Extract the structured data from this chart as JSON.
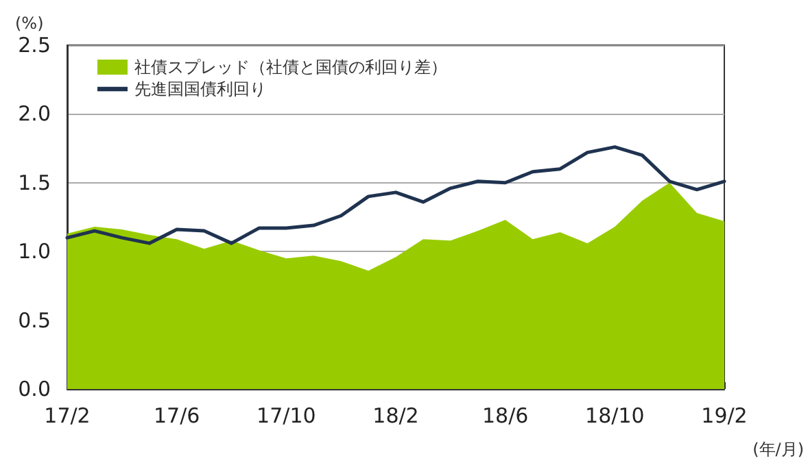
{
  "chart_data": {
    "type": "area",
    "ylabel": "(%)",
    "xlabel": "(年/月)",
    "categories": [
      "17/2",
      null,
      null,
      null,
      "17/6",
      null,
      null,
      null,
      "17/10",
      null,
      null,
      null,
      "18/2",
      null,
      null,
      null,
      "18/6",
      null,
      null,
      null,
      "18/10",
      null,
      null,
      null,
      "19/2"
    ],
    "series": [
      {
        "name": "社債スプレッド（社債と国債の利回り差）",
        "color": "#99cc00",
        "values": [
          1.13,
          1.18,
          1.16,
          1.12,
          1.09,
          1.02,
          1.08,
          1.01,
          0.95,
          0.97,
          0.93,
          0.86,
          0.96,
          1.09,
          1.08,
          1.15,
          1.23,
          1.09,
          1.14,
          1.06,
          1.18,
          1.37,
          1.5,
          1.28,
          1.22
        ]
      },
      {
        "name": "先進国国債利回り",
        "type": "line",
        "color": "#1f3350",
        "values": [
          1.1,
          1.15,
          1.1,
          1.06,
          1.16,
          1.15,
          1.06,
          1.17,
          1.17,
          1.19,
          1.26,
          1.4,
          1.43,
          1.36,
          1.46,
          1.51,
          1.5,
          1.58,
          1.6,
          1.72,
          1.76,
          1.7,
          1.51,
          1.45,
          1.51
        ]
      }
    ],
    "ylim": [
      0,
      2.5
    ],
    "yticks": [
      {
        "value": 0,
        "label": "0.0"
      },
      {
        "value": 0.5,
        "label": "0.5"
      },
      {
        "value": 1,
        "label": "1.0"
      },
      {
        "value": 1.5,
        "label": "1.5"
      },
      {
        "value": 2,
        "label": "2.0"
      },
      {
        "value": 2.5,
        "label": "2.5"
      }
    ],
    "grid": "y",
    "legend": "top left",
    "marker": "none",
    "line_style": "solid"
  }
}
